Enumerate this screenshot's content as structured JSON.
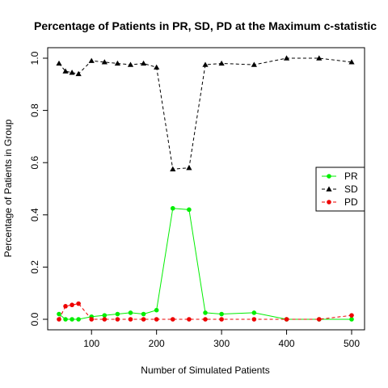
{
  "chart_data": {
    "type": "line",
    "title": "Percentage of Patients in PR, SD, PD at the Maximum c-statistic",
    "xlabel": "Number of Simulated Patients",
    "ylabel": "Percentage of Patients in Group",
    "xlim": [
      50,
      500
    ],
    "ylim": [
      0,
      1
    ],
    "x_ticks": [
      100,
      200,
      300,
      400,
      500
    ],
    "y_ticks": [
      "0.0",
      "0.2",
      "0.4",
      "0.6",
      "0.8",
      "1.0"
    ],
    "grid": false,
    "legend_position": "right",
    "x": [
      50,
      60,
      70,
      80,
      100,
      120,
      140,
      160,
      180,
      200,
      225,
      250,
      275,
      300,
      350,
      400,
      450,
      500
    ],
    "series": [
      {
        "name": "PR",
        "color": "#00ee00",
        "line_style": "solid",
        "marker": "circle",
        "values": [
          0.02,
          0.0,
          0.0,
          0.0,
          0.01,
          0.015,
          0.02,
          0.025,
          0.02,
          0.035,
          0.425,
          0.42,
          0.025,
          0.02,
          0.025,
          0.0,
          0.0,
          0.0
        ]
      },
      {
        "name": "SD",
        "color": "#000000",
        "line_style": "dashed",
        "marker": "triangle",
        "values": [
          0.98,
          0.95,
          0.945,
          0.94,
          0.99,
          0.985,
          0.98,
          0.975,
          0.98,
          0.965,
          0.575,
          0.58,
          0.975,
          0.98,
          0.975,
          1.0,
          1.0,
          0.985
        ]
      },
      {
        "name": "PD",
        "color": "#ee0000",
        "line_style": "dashed",
        "marker": "circle",
        "values": [
          0.0,
          0.05,
          0.055,
          0.06,
          0.0,
          0.0,
          0.0,
          0.0,
          0.0,
          0.0,
          0.0,
          0.0,
          0.0,
          0.0,
          0.0,
          0.0,
          0.0,
          0.015
        ]
      }
    ]
  }
}
